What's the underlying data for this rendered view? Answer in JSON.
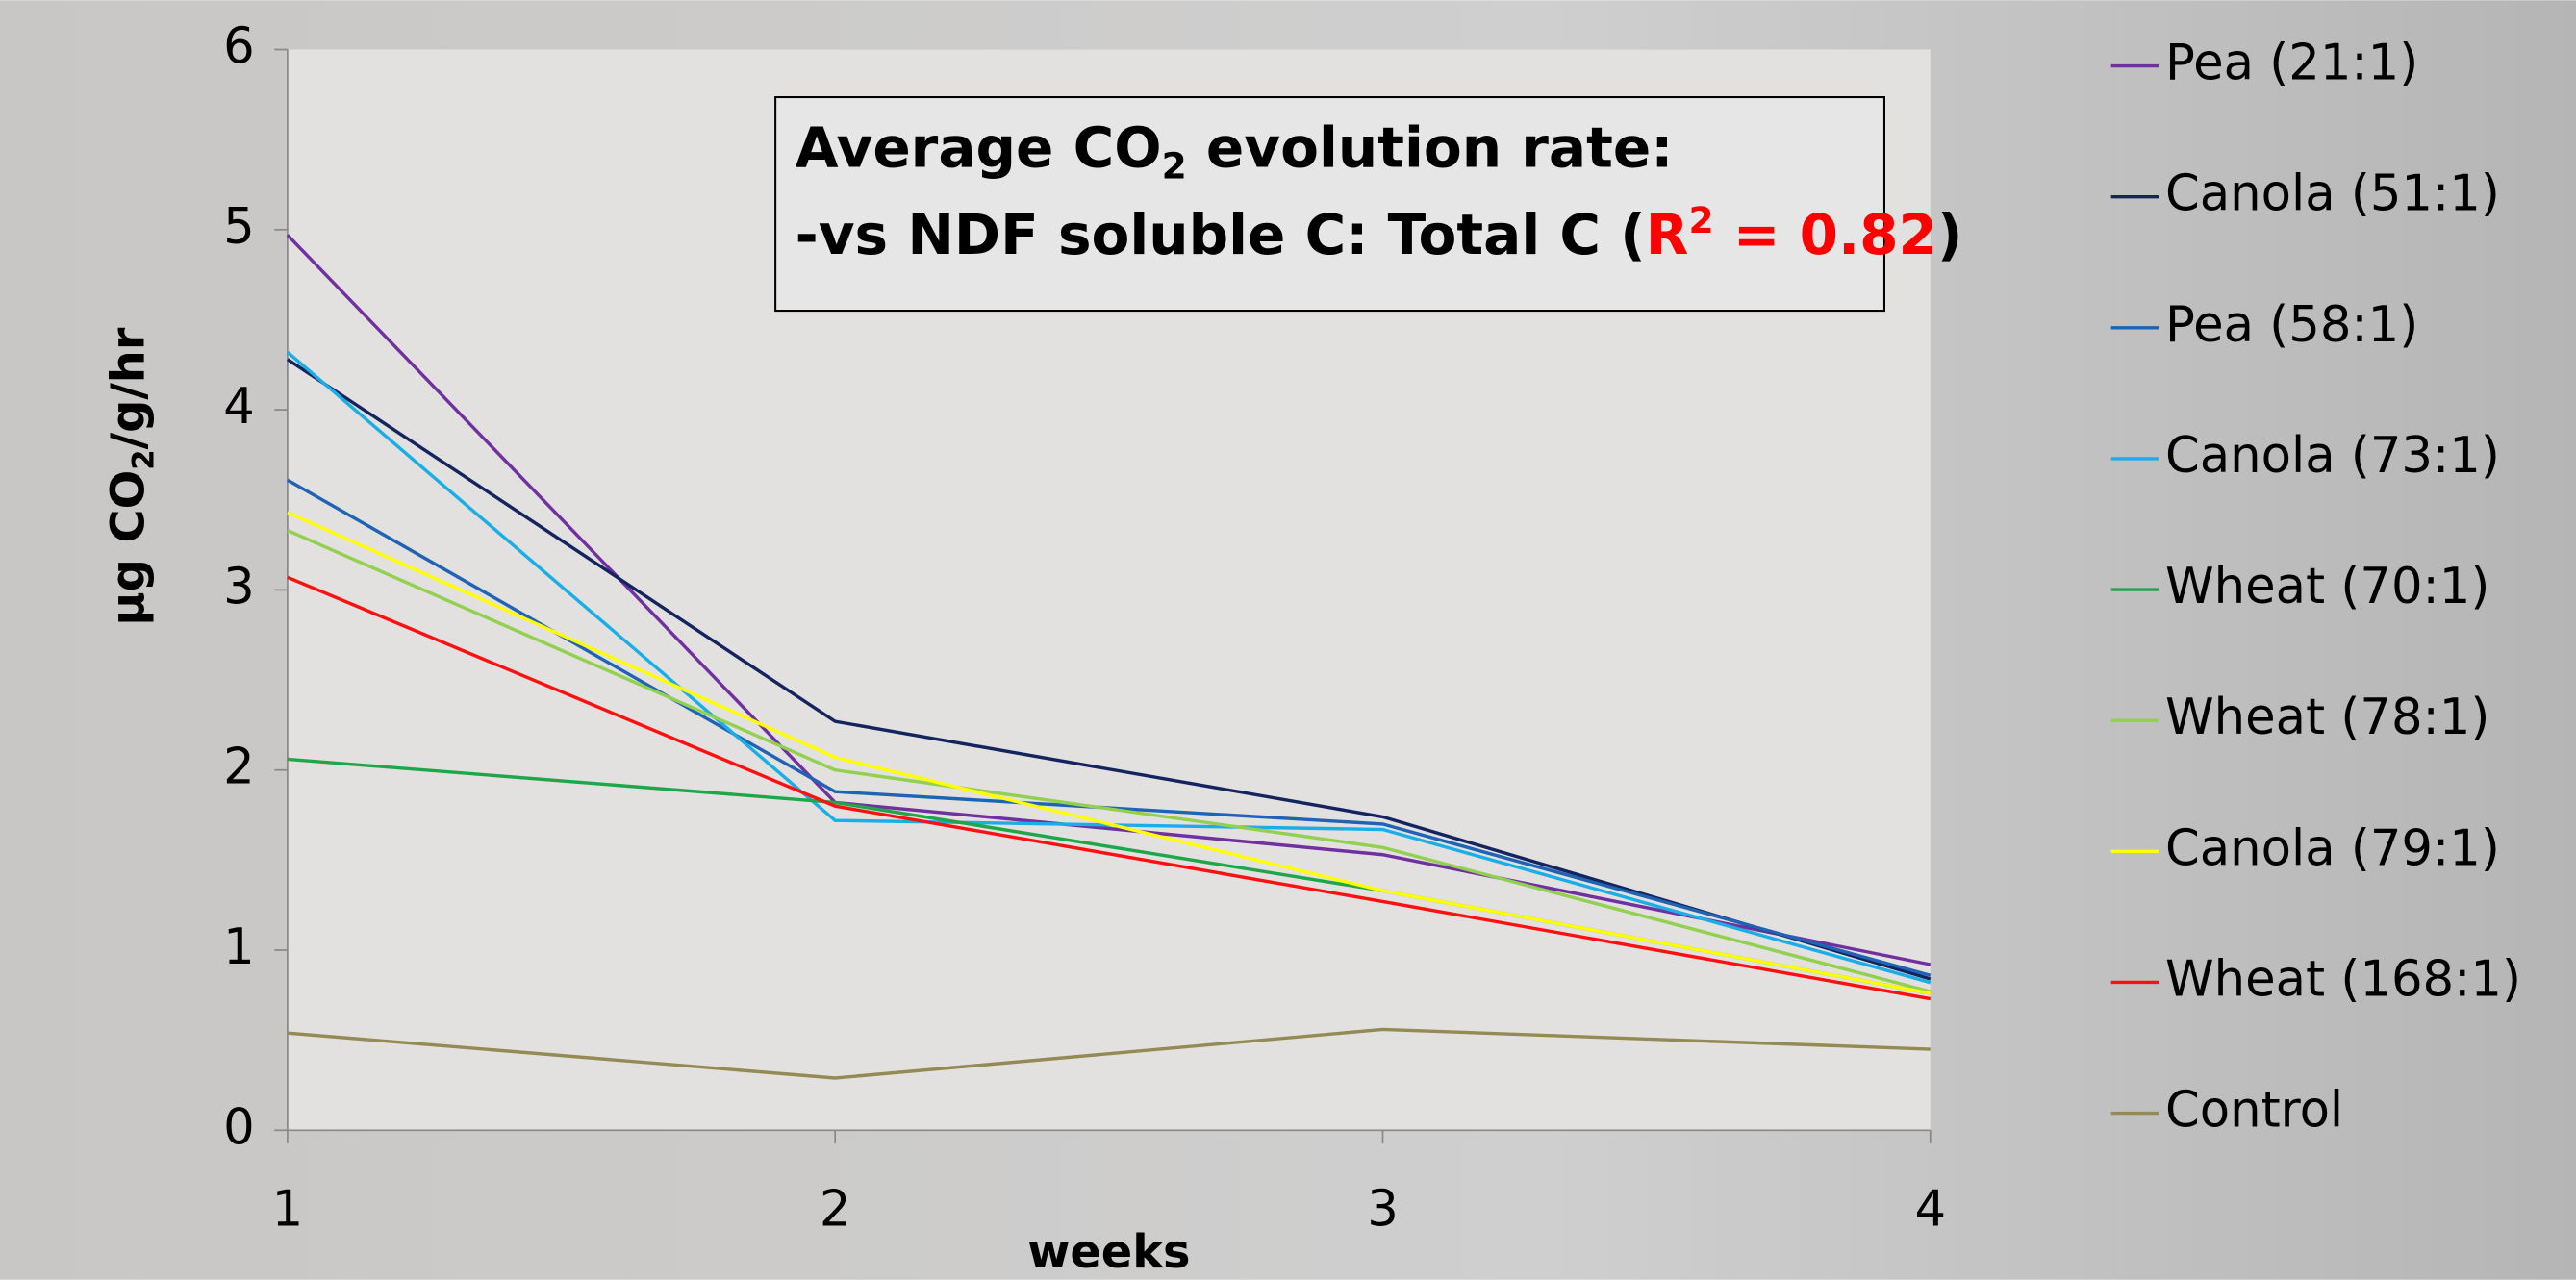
{
  "chart_data": {
    "type": "line",
    "title": {
      "line1": [
        "Average CO",
        "2",
        " evolution rate:"
      ],
      "line2": [
        "-vs NDF soluble C: Total C (",
        "R",
        "2",
        " = 0.82",
        ")"
      ]
    },
    "y_label": [
      "µg CO",
      "2",
      "/g/hr"
    ],
    "x_label": "weeks",
    "x": [
      1,
      2,
      3,
      4
    ],
    "xlim": [
      1,
      4
    ],
    "xticks": [
      1,
      2,
      3,
      4
    ],
    "ylim": [
      0,
      6
    ],
    "yticks": [
      0,
      1,
      2,
      3,
      4,
      5,
      6
    ],
    "series": [
      {
        "name": "Pea (21:1)",
        "color": "#7030a0",
        "values": [
          4.97,
          1.82,
          1.53,
          0.92
        ]
      },
      {
        "name": "Canola (51:1)",
        "color": "#14245e",
        "values": [
          4.28,
          2.27,
          1.74,
          0.84
        ]
      },
      {
        "name": "Pea (58:1)",
        "color": "#1f64b4",
        "values": [
          3.61,
          1.88,
          1.7,
          0.86
        ]
      },
      {
        "name": "Canola (73:1)",
        "color": "#1aaee6",
        "values": [
          4.32,
          1.72,
          1.67,
          0.82
        ]
      },
      {
        "name": "Wheat (70:1)",
        "color": "#1fa64a",
        "values": [
          2.06,
          1.82,
          1.33,
          0.76
        ]
      },
      {
        "name": "Wheat (78:1)",
        "color": "#92d050",
        "values": [
          3.33,
          2.0,
          1.57,
          0.77
        ]
      },
      {
        "name": "Canola (79:1)",
        "color": "#ffff00",
        "values": [
          3.43,
          2.07,
          1.33,
          0.76
        ]
      },
      {
        "name": "Wheat (168:1)",
        "color": "#ff1010",
        "values": [
          3.07,
          1.8,
          1.27,
          0.73
        ]
      },
      {
        "name": "Control",
        "color": "#948a54",
        "values": [
          0.54,
          0.29,
          0.56,
          0.45
        ]
      }
    ]
  }
}
